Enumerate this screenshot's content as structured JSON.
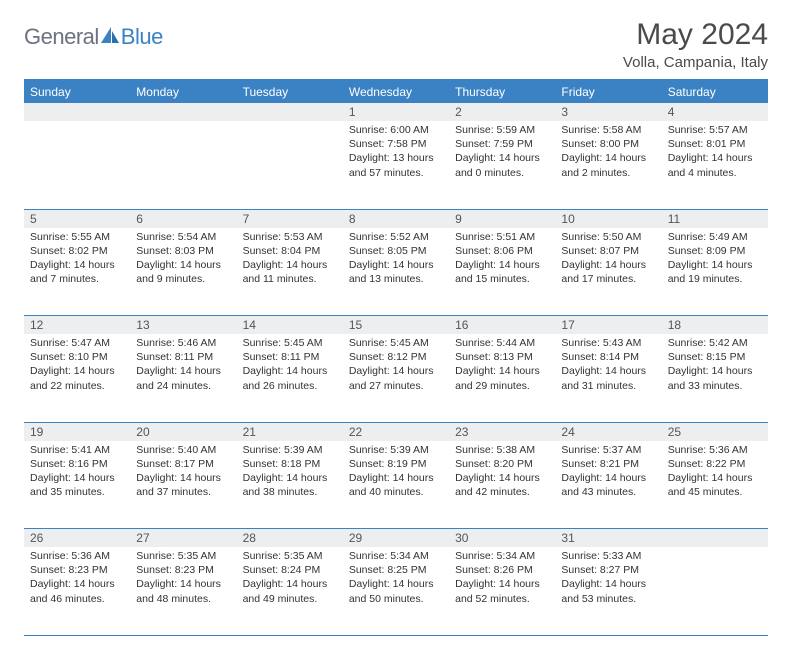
{
  "brand": {
    "text1": "General",
    "text2": "Blue"
  },
  "title": "May 2024",
  "location": "Volla, Campania, Italy",
  "colors": {
    "header_bg": "#3b82c4",
    "header_text": "#ffffff",
    "daynum_bg": "#eceef0",
    "text": "#333333",
    "border": "#3b82c4"
  },
  "typography": {
    "title_size": 30,
    "location_size": 15,
    "th_size": 12,
    "cell_size": 10.5
  },
  "calendar": {
    "type": "table",
    "weekdays": [
      "Sunday",
      "Monday",
      "Tuesday",
      "Wednesday",
      "Thursday",
      "Friday",
      "Saturday"
    ],
    "weeks": [
      [
        null,
        null,
        null,
        {
          "d": "1",
          "sr": "6:00 AM",
          "ss": "7:58 PM",
          "dl": "13 hours and 57 minutes."
        },
        {
          "d": "2",
          "sr": "5:59 AM",
          "ss": "7:59 PM",
          "dl": "14 hours and 0 minutes."
        },
        {
          "d": "3",
          "sr": "5:58 AM",
          "ss": "8:00 PM",
          "dl": "14 hours and 2 minutes."
        },
        {
          "d": "4",
          "sr": "5:57 AM",
          "ss": "8:01 PM",
          "dl": "14 hours and 4 minutes."
        }
      ],
      [
        {
          "d": "5",
          "sr": "5:55 AM",
          "ss": "8:02 PM",
          "dl": "14 hours and 7 minutes."
        },
        {
          "d": "6",
          "sr": "5:54 AM",
          "ss": "8:03 PM",
          "dl": "14 hours and 9 minutes."
        },
        {
          "d": "7",
          "sr": "5:53 AM",
          "ss": "8:04 PM",
          "dl": "14 hours and 11 minutes."
        },
        {
          "d": "8",
          "sr": "5:52 AM",
          "ss": "8:05 PM",
          "dl": "14 hours and 13 minutes."
        },
        {
          "d": "9",
          "sr": "5:51 AM",
          "ss": "8:06 PM",
          "dl": "14 hours and 15 minutes."
        },
        {
          "d": "10",
          "sr": "5:50 AM",
          "ss": "8:07 PM",
          "dl": "14 hours and 17 minutes."
        },
        {
          "d": "11",
          "sr": "5:49 AM",
          "ss": "8:09 PM",
          "dl": "14 hours and 19 minutes."
        }
      ],
      [
        {
          "d": "12",
          "sr": "5:47 AM",
          "ss": "8:10 PM",
          "dl": "14 hours and 22 minutes."
        },
        {
          "d": "13",
          "sr": "5:46 AM",
          "ss": "8:11 PM",
          "dl": "14 hours and 24 minutes."
        },
        {
          "d": "14",
          "sr": "5:45 AM",
          "ss": "8:11 PM",
          "dl": "14 hours and 26 minutes."
        },
        {
          "d": "15",
          "sr": "5:45 AM",
          "ss": "8:12 PM",
          "dl": "14 hours and 27 minutes."
        },
        {
          "d": "16",
          "sr": "5:44 AM",
          "ss": "8:13 PM",
          "dl": "14 hours and 29 minutes."
        },
        {
          "d": "17",
          "sr": "5:43 AM",
          "ss": "8:14 PM",
          "dl": "14 hours and 31 minutes."
        },
        {
          "d": "18",
          "sr": "5:42 AM",
          "ss": "8:15 PM",
          "dl": "14 hours and 33 minutes."
        }
      ],
      [
        {
          "d": "19",
          "sr": "5:41 AM",
          "ss": "8:16 PM",
          "dl": "14 hours and 35 minutes."
        },
        {
          "d": "20",
          "sr": "5:40 AM",
          "ss": "8:17 PM",
          "dl": "14 hours and 37 minutes."
        },
        {
          "d": "21",
          "sr": "5:39 AM",
          "ss": "8:18 PM",
          "dl": "14 hours and 38 minutes."
        },
        {
          "d": "22",
          "sr": "5:39 AM",
          "ss": "8:19 PM",
          "dl": "14 hours and 40 minutes."
        },
        {
          "d": "23",
          "sr": "5:38 AM",
          "ss": "8:20 PM",
          "dl": "14 hours and 42 minutes."
        },
        {
          "d": "24",
          "sr": "5:37 AM",
          "ss": "8:21 PM",
          "dl": "14 hours and 43 minutes."
        },
        {
          "d": "25",
          "sr": "5:36 AM",
          "ss": "8:22 PM",
          "dl": "14 hours and 45 minutes."
        }
      ],
      [
        {
          "d": "26",
          "sr": "5:36 AM",
          "ss": "8:23 PM",
          "dl": "14 hours and 46 minutes."
        },
        {
          "d": "27",
          "sr": "5:35 AM",
          "ss": "8:23 PM",
          "dl": "14 hours and 48 minutes."
        },
        {
          "d": "28",
          "sr": "5:35 AM",
          "ss": "8:24 PM",
          "dl": "14 hours and 49 minutes."
        },
        {
          "d": "29",
          "sr": "5:34 AM",
          "ss": "8:25 PM",
          "dl": "14 hours and 50 minutes."
        },
        {
          "d": "30",
          "sr": "5:34 AM",
          "ss": "8:26 PM",
          "dl": "14 hours and 52 minutes."
        },
        {
          "d": "31",
          "sr": "5:33 AM",
          "ss": "8:27 PM",
          "dl": "14 hours and 53 minutes."
        },
        null
      ]
    ]
  },
  "labels": {
    "sunrise": "Sunrise:",
    "sunset": "Sunset:",
    "daylight": "Daylight:"
  }
}
